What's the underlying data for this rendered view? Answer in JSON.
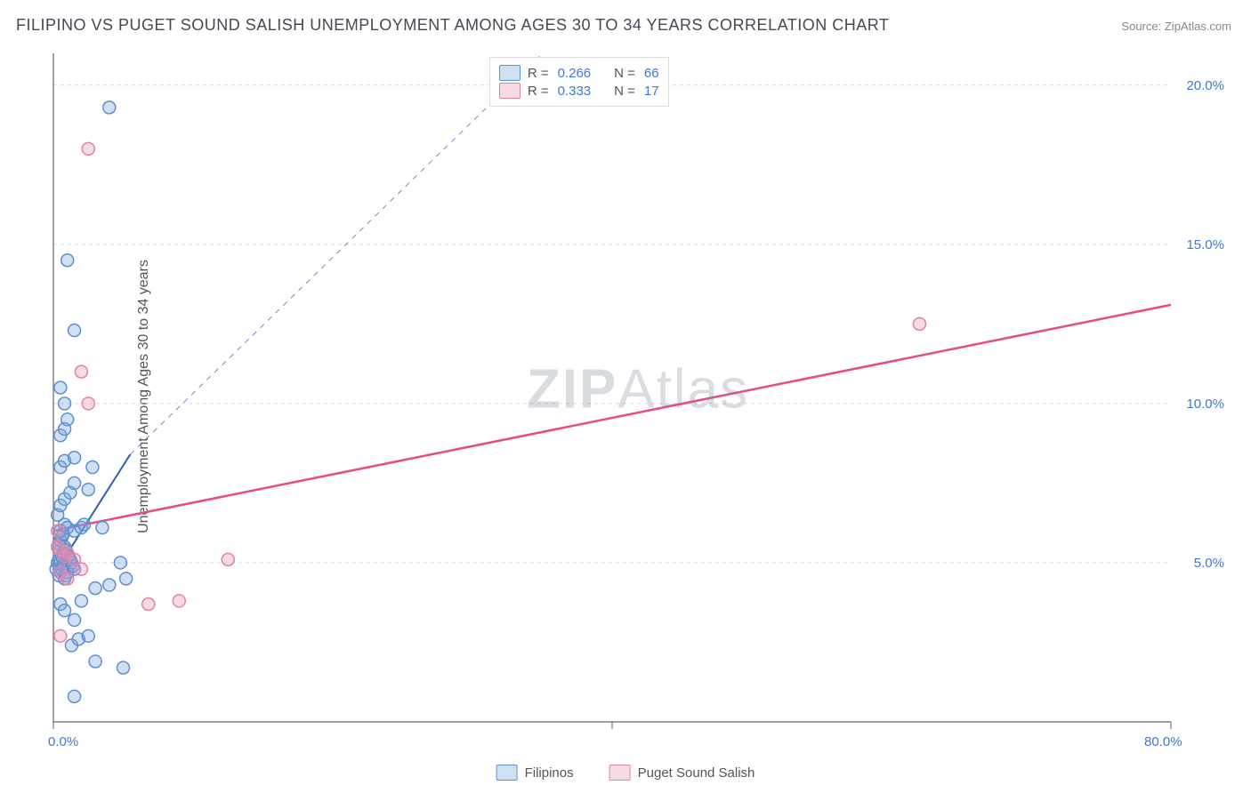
{
  "title": "FILIPINO VS PUGET SOUND SALISH UNEMPLOYMENT AMONG AGES 30 TO 34 YEARS CORRELATION CHART",
  "source_label": "Source:",
  "source_name": "ZipAtlas.com",
  "ylabel": "Unemployment Among Ages 30 to 34 years",
  "watermark_bold": "ZIP",
  "watermark_rest": "Atlas",
  "chart": {
    "type": "scatter",
    "xlim": [
      0,
      80
    ],
    "ylim": [
      0,
      21
    ],
    "ytick_values": [
      5,
      10,
      15,
      20
    ],
    "ytick_labels": [
      "5.0%",
      "10.0%",
      "15.0%",
      "20.0%"
    ],
    "xtick_values": [
      0,
      40,
      80
    ],
    "xtick_origin_label": "0.0%",
    "xtick_max_label": "80.0%",
    "background_color": "#ffffff",
    "grid_color": "#d8d8d8",
    "axis_color": "#666666",
    "tick_label_color": "#3d78d6",
    "tick_fontsize": 15,
    "marker_radius": 7,
    "marker_stroke_width": 1.5,
    "series": [
      {
        "name": "Filipinos",
        "fill": "rgba(120,165,220,0.35)",
        "stroke": "#5f8fd0",
        "r_value": "0.266",
        "n_value": "66",
        "trend": {
          "x1": 0,
          "y1": 4.6,
          "x2": 5.5,
          "y2": 8.4,
          "dash_to_x": 35,
          "dash_to_y": 21,
          "color": "#2f5fb5",
          "width": 2
        },
        "points": [
          [
            0.2,
            4.8
          ],
          [
            0.3,
            5.0
          ],
          [
            0.4,
            5.1
          ],
          [
            0.5,
            5.0
          ],
          [
            0.6,
            5.2
          ],
          [
            0.7,
            5.3
          ],
          [
            0.8,
            5.4
          ],
          [
            0.4,
            4.6
          ],
          [
            0.5,
            4.7
          ],
          [
            0.6,
            4.8
          ],
          [
            0.7,
            4.9
          ],
          [
            0.8,
            4.5
          ],
          [
            0.9,
            4.6
          ],
          [
            1.0,
            4.7
          ],
          [
            0.3,
            5.5
          ],
          [
            0.4,
            5.6
          ],
          [
            0.5,
            5.7
          ],
          [
            0.6,
            5.8
          ],
          [
            0.7,
            5.9
          ],
          [
            0.8,
            5.5
          ],
          [
            0.9,
            5.4
          ],
          [
            1.0,
            5.3
          ],
          [
            1.1,
            5.2
          ],
          [
            1.2,
            5.1
          ],
          [
            1.3,
            5.0
          ],
          [
            1.4,
            4.9
          ],
          [
            1.5,
            4.8
          ],
          [
            0.5,
            6.0
          ],
          [
            0.8,
            6.2
          ],
          [
            1.0,
            6.1
          ],
          [
            1.5,
            6.0
          ],
          [
            2.0,
            6.1
          ],
          [
            2.2,
            6.2
          ],
          [
            0.3,
            6.5
          ],
          [
            0.5,
            6.8
          ],
          [
            0.8,
            7.0
          ],
          [
            1.2,
            7.2
          ],
          [
            1.5,
            7.5
          ],
          [
            2.5,
            7.3
          ],
          [
            0.5,
            8.0
          ],
          [
            0.8,
            8.2
          ],
          [
            1.5,
            8.3
          ],
          [
            2.8,
            8.0
          ],
          [
            0.5,
            9.0
          ],
          [
            0.8,
            9.2
          ],
          [
            1.0,
            9.5
          ],
          [
            0.5,
            10.5
          ],
          [
            0.8,
            10.0
          ],
          [
            1.5,
            12.3
          ],
          [
            1.0,
            14.5
          ],
          [
            4.0,
            19.3
          ],
          [
            0.5,
            3.7
          ],
          [
            0.8,
            3.5
          ],
          [
            1.5,
            3.2
          ],
          [
            2.0,
            3.8
          ],
          [
            3.0,
            4.2
          ],
          [
            4.0,
            4.3
          ],
          [
            1.3,
            2.4
          ],
          [
            1.8,
            2.6
          ],
          [
            2.5,
            2.7
          ],
          [
            3.0,
            1.9
          ],
          [
            5.0,
            1.7
          ],
          [
            1.5,
            0.8
          ],
          [
            3.5,
            6.1
          ],
          [
            4.8,
            5.0
          ],
          [
            5.2,
            4.5
          ]
        ]
      },
      {
        "name": "Puget Sound Salish",
        "fill": "rgba(235,150,180,0.35)",
        "stroke": "#e481a8",
        "r_value": "0.333",
        "n_value": "17",
        "trend": {
          "x1": 0,
          "y1": 6.0,
          "x2": 80,
          "y2": 13.1,
          "color": "#e84b8a",
          "width": 2.5
        },
        "points": [
          [
            0.3,
            5.5
          ],
          [
            0.5,
            5.4
          ],
          [
            0.8,
            5.2
          ],
          [
            1.0,
            5.3
          ],
          [
            1.5,
            5.1
          ],
          [
            0.5,
            4.7
          ],
          [
            1.0,
            4.5
          ],
          [
            2.0,
            4.8
          ],
          [
            0.5,
            2.7
          ],
          [
            2.0,
            11.0
          ],
          [
            2.5,
            10.0
          ],
          [
            6.8,
            3.7
          ],
          [
            9.0,
            3.8
          ],
          [
            12.5,
            5.1
          ],
          [
            2.5,
            18.0
          ],
          [
            62.0,
            12.5
          ],
          [
            0.3,
            6.0
          ]
        ]
      }
    ]
  },
  "legend_top": {
    "r_label": "R =",
    "n_label": "N ="
  },
  "legend_bottom": {
    "items": [
      "Filipinos",
      "Puget Sound Salish"
    ]
  }
}
